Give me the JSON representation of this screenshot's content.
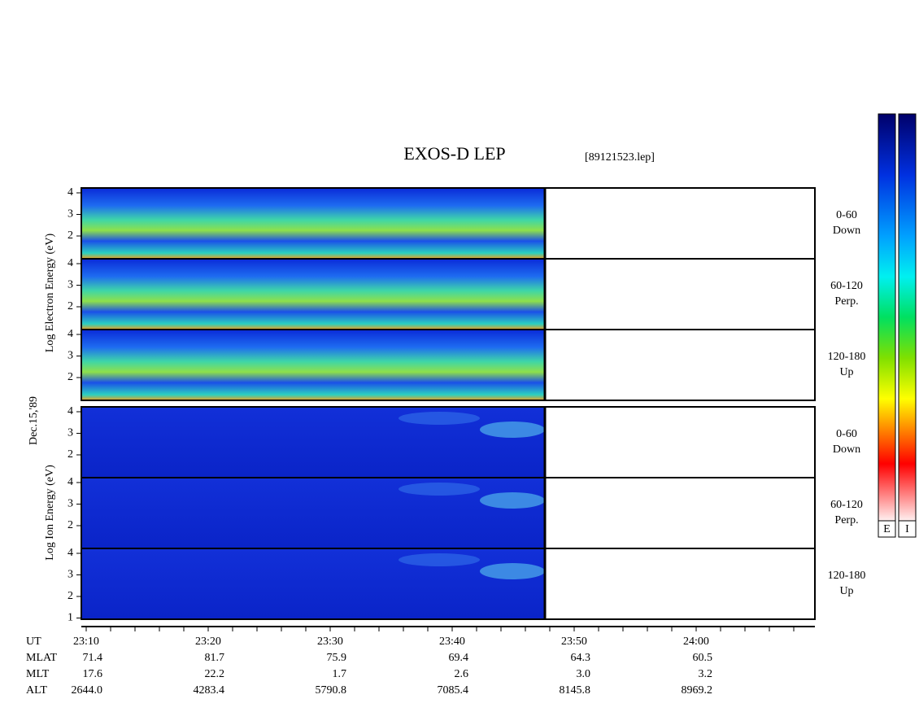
{
  "header": {
    "title": "EXOS-D LEP",
    "file": "[89121523.lep]",
    "date": "Dec.15,'89"
  },
  "electron": {
    "label": "Log Electron Energy (eV)",
    "panels": [
      {
        "ticks": [
          "4",
          "3",
          "2"
        ],
        "angle": "0-60",
        "direction": "Down"
      },
      {
        "ticks": [
          "4",
          "3",
          "2"
        ],
        "angle": "60-120",
        "direction": "Perp."
      },
      {
        "ticks": [
          "4",
          "3",
          "2"
        ],
        "angle": "120-180",
        "direction": "Up"
      }
    ]
  },
  "ion": {
    "label": "Log Ion Energy (eV)",
    "panels": [
      {
        "ticks": [
          "4",
          "3",
          "2"
        ],
        "angle": "0-60",
        "direction": "Down"
      },
      {
        "ticks": [
          "4",
          "3",
          "2"
        ],
        "angle": "60-120",
        "direction": "Perp."
      },
      {
        "ticks": [
          "4",
          "3",
          "2",
          "1"
        ],
        "angle": "120-180",
        "direction": "Up"
      }
    ]
  },
  "time_axis": {
    "rows": [
      {
        "name": "UT",
        "values": [
          "23:10",
          "23:20",
          "23:30",
          "23:40",
          "23:50",
          "24:00"
        ]
      },
      {
        "name": "MLAT",
        "values": [
          "71.4",
          "81.7",
          "75.9",
          "69.4",
          "64.3",
          "60.5"
        ]
      },
      {
        "name": "MLT",
        "values": [
          "17.6",
          "22.2",
          "1.7",
          "2.6",
          "3.0",
          "3.2"
        ]
      },
      {
        "name": "ALT",
        "values": [
          "2644.0",
          "4283.4",
          "5790.8",
          "7085.4",
          "8145.8",
          "8969.2"
        ]
      }
    ]
  },
  "color_bars": [
    "E",
    "I"
  ]
}
